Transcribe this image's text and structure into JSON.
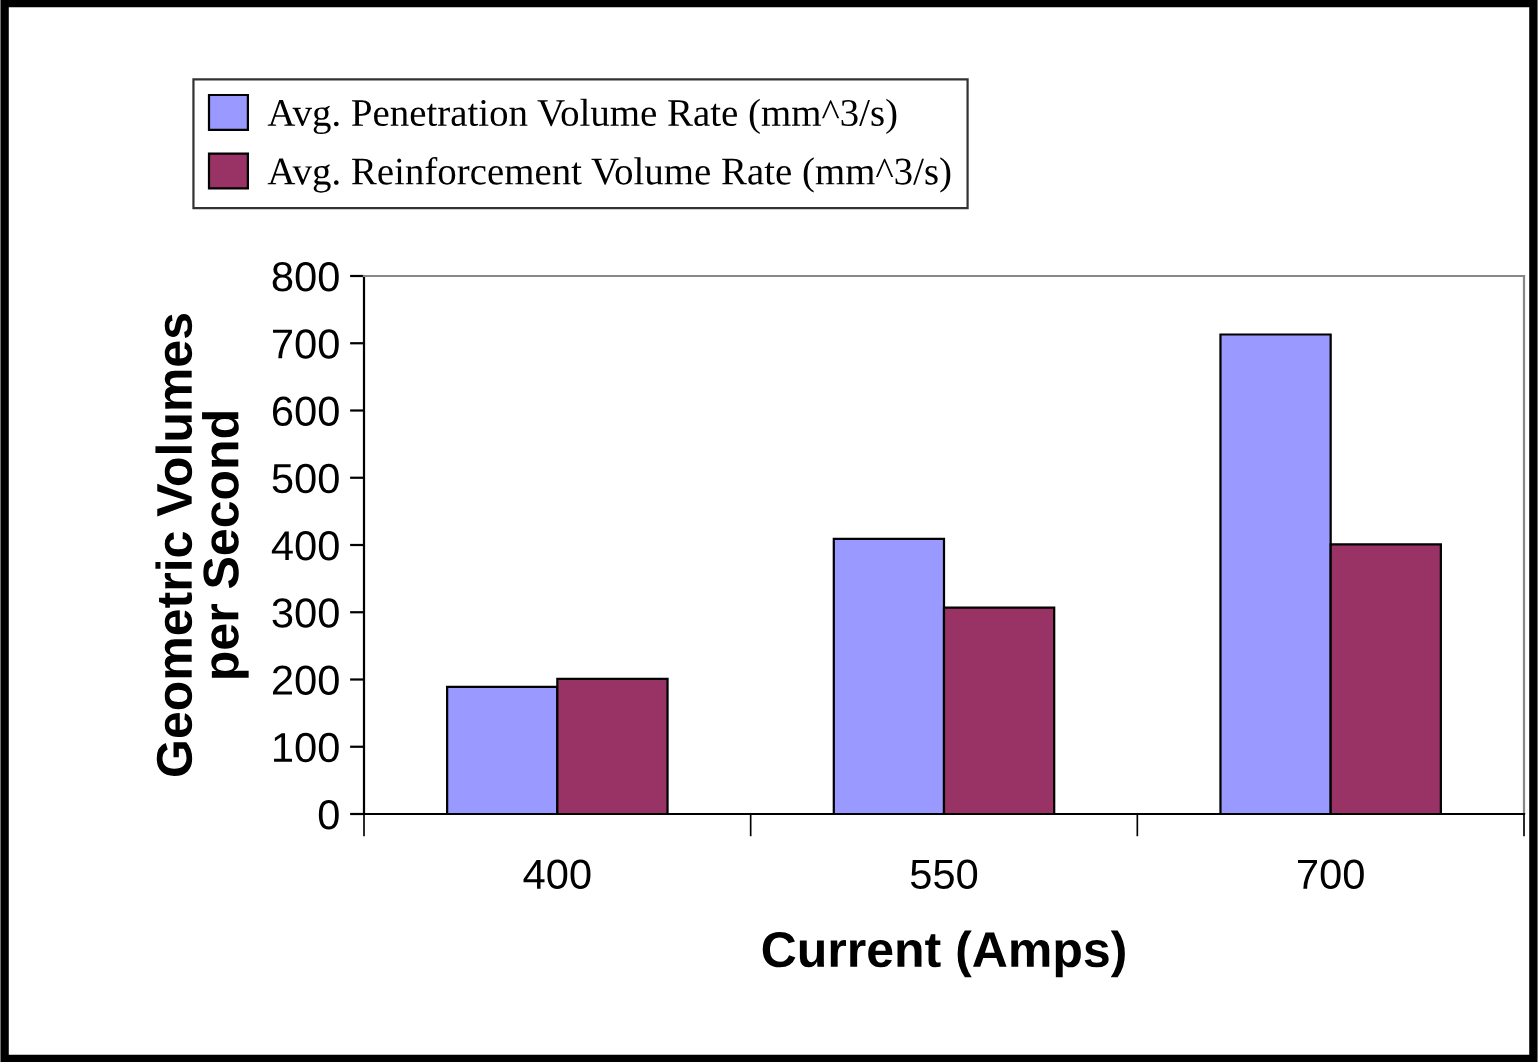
{
  "chart_data": {
    "type": "bar",
    "xlabel": "Current (Amps)",
    "ylabel": "Geometric Volumes\nper Second",
    "categories": [
      "400",
      "550",
      "700"
    ],
    "series": [
      {
        "name": "Avg. Penetration Volume Rate (mm^3/s)",
        "color": "#9999ff",
        "values": [
          189,
          409,
          713
        ]
      },
      {
        "name": "Avg. Reinforcement Volume Rate (mm^3/s)",
        "color": "#993366",
        "values": [
          201,
          307,
          401
        ]
      }
    ],
    "ylim": [
      0,
      800
    ],
    "yticks": [
      0,
      100,
      200,
      300,
      400,
      500,
      600,
      700,
      800
    ],
    "grid": false,
    "legend": "top"
  }
}
